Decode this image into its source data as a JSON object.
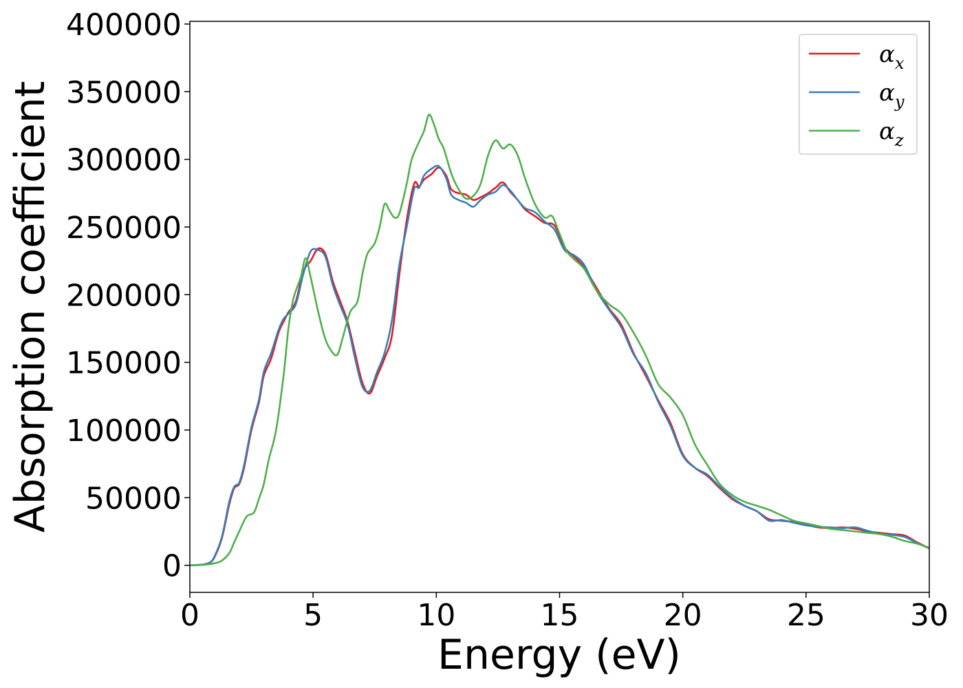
{
  "chart_data": {
    "type": "line",
    "title": "",
    "xlabel": "Energy (eV)",
    "ylabel": "Absorption coefficient",
    "xlim": [
      0,
      30
    ],
    "ylim": [
      -20000,
      402000
    ],
    "xticks": [
      0,
      5,
      10,
      15,
      20,
      25,
      30
    ],
    "xtick_labels": [
      "0",
      "5",
      "10",
      "15",
      "20",
      "25",
      "30"
    ],
    "yticks": [
      0,
      50000,
      100000,
      150000,
      200000,
      250000,
      300000,
      350000,
      400000
    ],
    "ytick_labels": [
      "0",
      "50000",
      "100000",
      "150000",
      "200000",
      "250000",
      "300000",
      "350000",
      "400000"
    ],
    "grid": false,
    "legend_position": "top-right",
    "series": [
      {
        "name": "α",
        "name_subscript": "x",
        "color": "#e41a1c",
        "x": [
          0,
          0.5,
          0.8,
          1.0,
          1.3,
          1.6,
          1.8,
          2.0,
          2.2,
          2.5,
          2.8,
          3.0,
          3.3,
          3.6,
          3.8,
          4.0,
          4.3,
          4.6,
          4.9,
          5.2,
          5.5,
          5.8,
          6.1,
          6.4,
          6.7,
          7.0,
          7.3,
          7.6,
          7.9,
          8.2,
          8.5,
          8.8,
          9.1,
          9.3,
          9.5,
          9.8,
          10.1,
          10.4,
          10.6,
          10.9,
          11.2,
          11.5,
          11.8,
          12.1,
          12.4,
          12.7,
          13.0,
          13.3,
          13.6,
          14.0,
          14.4,
          14.8,
          15.2,
          15.6,
          16.0,
          16.5,
          17.0,
          17.5,
          18.0,
          18.5,
          19.0,
          19.5,
          20.0,
          20.5,
          21.0,
          21.5,
          22.0,
          22.5,
          23.0,
          23.5,
          24.0,
          24.5,
          25.0,
          25.5,
          26.0,
          26.5,
          27.0,
          27.5,
          28.0,
          28.5,
          29.0,
          29.5,
          30.0
        ],
        "values": [
          0,
          500,
          2000,
          6000,
          20000,
          45000,
          57000,
          60000,
          72000,
          100000,
          120000,
          140000,
          153000,
          172000,
          180000,
          187000,
          195000,
          217000,
          225000,
          234000,
          230000,
          210000,
          195000,
          180000,
          157000,
          135000,
          127000,
          140000,
          153000,
          170000,
          215000,
          255000,
          282000,
          280000,
          285000,
          289000,
          294000,
          288000,
          278000,
          275000,
          274000,
          270000,
          272000,
          275000,
          279000,
          283000,
          276000,
          270000,
          263000,
          258000,
          253000,
          251000,
          235000,
          228000,
          220000,
          205000,
          190000,
          178000,
          157000,
          140000,
          122000,
          105000,
          82000,
          72000,
          66000,
          57000,
          49000,
          44000,
          40000,
          34000,
          33000,
          32000,
          30000,
          28000,
          27500,
          28000,
          27000,
          25000,
          24000,
          23000,
          22000,
          17000,
          12500
        ]
      },
      {
        "name": "α",
        "name_subscript": "y",
        "color": "#377eb8",
        "x": [
          0,
          0.5,
          0.8,
          1.0,
          1.3,
          1.6,
          1.8,
          2.0,
          2.2,
          2.5,
          2.8,
          3.0,
          3.3,
          3.6,
          3.8,
          4.0,
          4.3,
          4.6,
          4.9,
          5.2,
          5.5,
          5.8,
          6.1,
          6.4,
          6.7,
          7.0,
          7.3,
          7.6,
          7.9,
          8.2,
          8.5,
          8.8,
          9.1,
          9.3,
          9.5,
          9.8,
          10.1,
          10.4,
          10.6,
          10.9,
          11.2,
          11.5,
          11.8,
          12.1,
          12.4,
          12.7,
          13.0,
          13.3,
          13.6,
          14.0,
          14.4,
          14.8,
          15.2,
          15.6,
          16.0,
          16.5,
          17.0,
          17.5,
          18.0,
          18.5,
          19.0,
          19.5,
          20.0,
          20.5,
          21.0,
          21.5,
          22.0,
          22.5,
          23.0,
          23.5,
          24.0,
          24.5,
          25.0,
          25.5,
          26.0,
          26.5,
          27.0,
          27.5,
          28.0,
          28.5,
          29.0,
          29.5,
          30.0
        ],
        "values": [
          0,
          500,
          2000,
          6500,
          21000,
          47000,
          58000,
          61000,
          74000,
          102000,
          122000,
          143000,
          157000,
          174000,
          182000,
          186000,
          193000,
          215000,
          232000,
          233000,
          228000,
          207000,
          192000,
          178000,
          153000,
          132000,
          129000,
          143000,
          157000,
          181000,
          222000,
          250000,
          278000,
          279000,
          288000,
          293000,
          295000,
          286000,
          274000,
          270000,
          268000,
          265000,
          270000,
          274000,
          276000,
          281000,
          277000,
          270000,
          264000,
          261000,
          254000,
          248000,
          233000,
          229000,
          222000,
          203000,
          189000,
          176000,
          156000,
          142000,
          121000,
          103000,
          81000,
          72000,
          67000,
          58000,
          50000,
          44000,
          40000,
          33000,
          33500,
          31500,
          29500,
          28500,
          28000,
          27500,
          28000,
          25500,
          23500,
          22500,
          21000,
          16500,
          12500
        ]
      },
      {
        "name": "α",
        "name_subscript": "z",
        "color": "#4daf4a",
        "x": [
          0,
          0.5,
          1.0,
          1.3,
          1.6,
          1.8,
          2.0,
          2.3,
          2.6,
          2.8,
          3.0,
          3.2,
          3.5,
          3.8,
          4.0,
          4.2,
          4.5,
          4.7,
          4.9,
          5.2,
          5.5,
          5.8,
          6.0,
          6.2,
          6.5,
          6.8,
          7.0,
          7.2,
          7.5,
          7.7,
          7.9,
          8.1,
          8.3,
          8.5,
          8.8,
          9.0,
          9.3,
          9.5,
          9.7,
          9.9,
          10.1,
          10.3,
          10.6,
          10.9,
          11.2,
          11.5,
          11.8,
          12.1,
          12.4,
          12.7,
          13.0,
          13.3,
          13.6,
          14.0,
          14.4,
          14.7,
          15.0,
          15.3,
          15.6,
          16.0,
          16.5,
          17.0,
          17.5,
          18.0,
          18.5,
          19.0,
          19.5,
          20.0,
          20.5,
          21.0,
          21.5,
          22.0,
          22.5,
          23.0,
          23.5,
          24.0,
          24.5,
          25.0,
          25.5,
          26.0,
          26.5,
          27.0,
          27.5,
          28.0,
          28.5,
          29.0,
          29.5,
          30.0
        ],
        "values": [
          0,
          300,
          1500,
          3500,
          9000,
          17000,
          25000,
          36000,
          39000,
          49000,
          60000,
          78000,
          100000,
          140000,
          175000,
          197000,
          213000,
          227000,
          213000,
          188000,
          167000,
          157000,
          156000,
          168000,
          187000,
          195000,
          215000,
          230000,
          238000,
          250000,
          267000,
          262000,
          257000,
          260000,
          282000,
          300000,
          313000,
          321000,
          333000,
          326000,
          315000,
          308000,
          290000,
          278000,
          271000,
          273000,
          282000,
          303000,
          314000,
          308000,
          311000,
          303000,
          286000,
          267000,
          257000,
          258000,
          245000,
          232000,
          226000,
          219000,
          203000,
          193000,
          186000,
          172000,
          155000,
          134000,
          124000,
          111000,
          89000,
          74000,
          60000,
          52000,
          47000,
          44000,
          41000,
          37000,
          33000,
          31000,
          29000,
          27000,
          26000,
          25000,
          24000,
          23000,
          21000,
          18000,
          16000,
          13000
        ]
      }
    ]
  }
}
